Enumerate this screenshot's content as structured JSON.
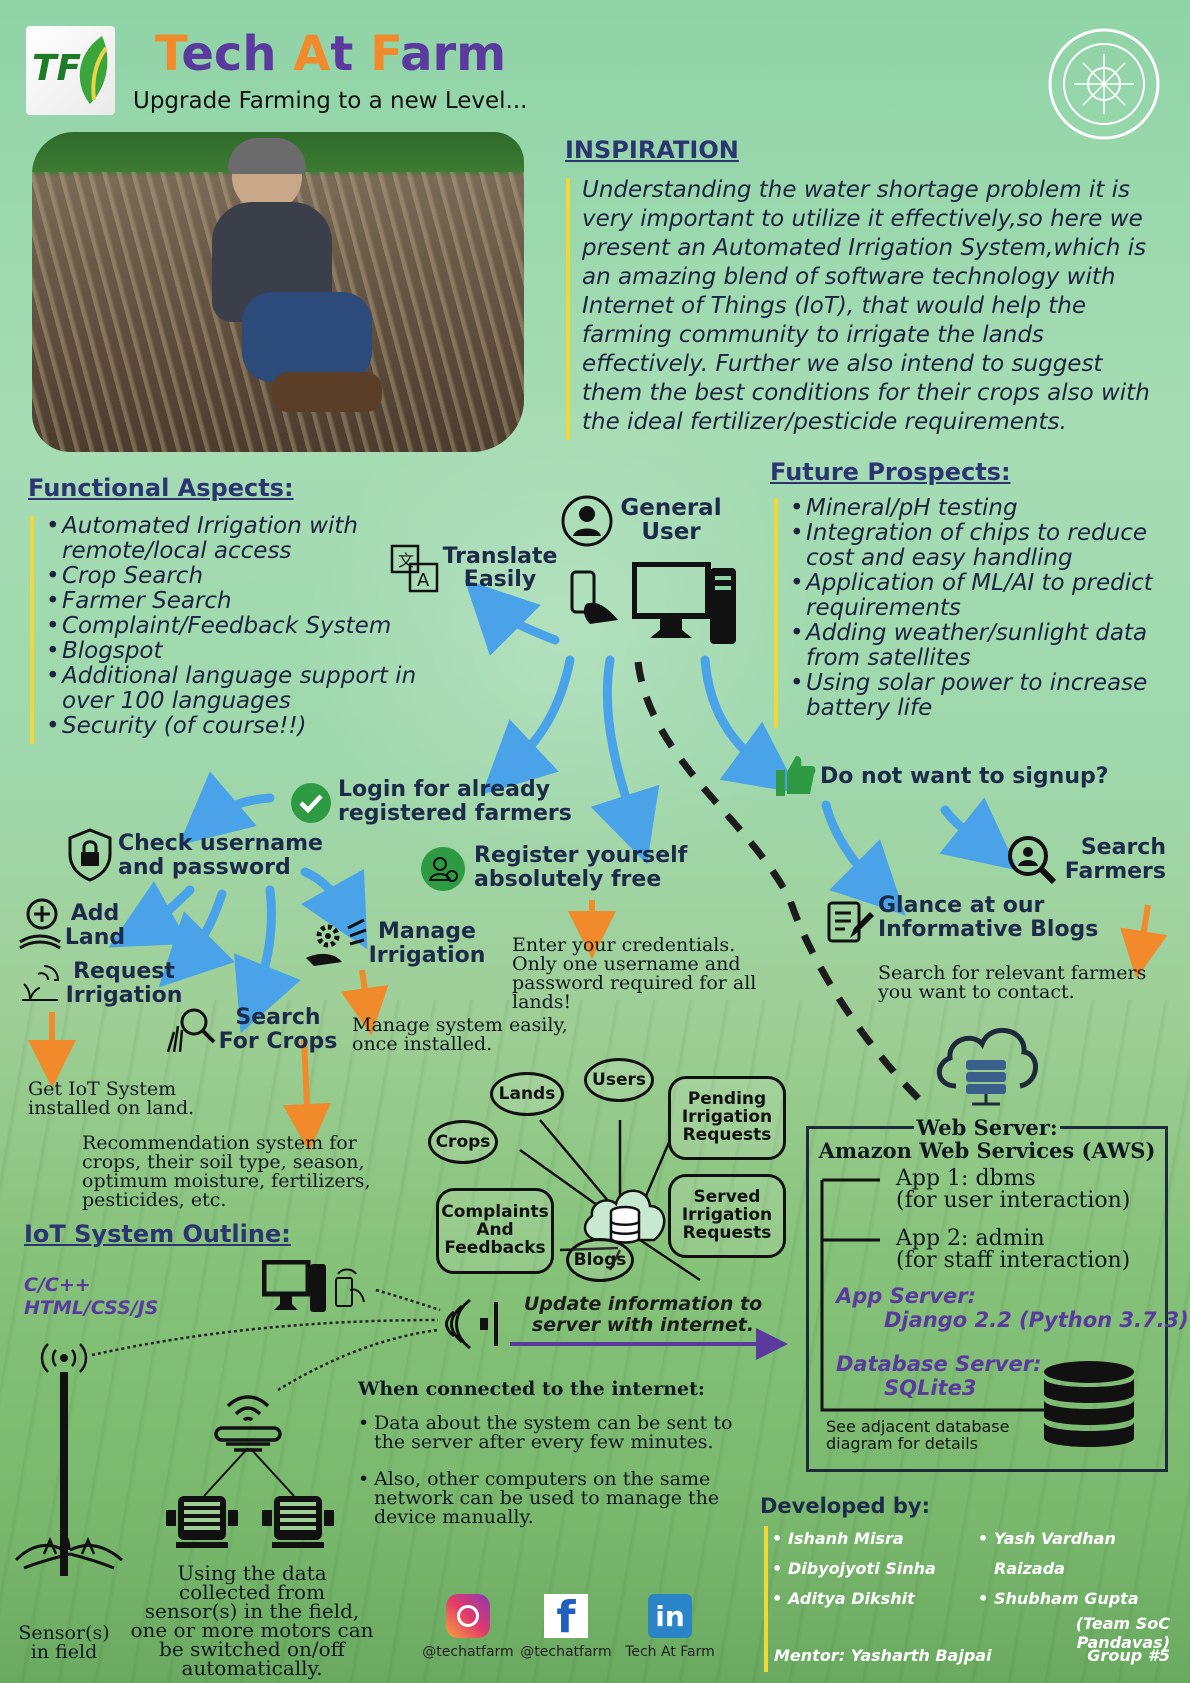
{
  "header": {
    "title_t1": "T",
    "title_p1": "ech ",
    "title_t2": "A",
    "title_p2": "t ",
    "title_t3": "F",
    "title_p3": "arm",
    "subtitle": "Upgrade Farming to a new Level...",
    "logo_letters": "TF"
  },
  "inspiration": {
    "heading": "INSPIRATION",
    "text": "Understanding the water shortage problem it is very important to utilize it effectively,so here we present an Automated Irrigation System,which is an amazing blend of software technology with Internet of Things (IoT), that would help the farming community to irrigate the lands effectively. Further we also intend to suggest them the best conditions for their crops also with the ideal fertilizer/pesticide requirements."
  },
  "functional": {
    "heading": "Functional Aspects:",
    "items": [
      "Automated Irrigation with remote/local access",
      "Crop Search",
      "Farmer Search",
      "Complaint/Feedback System",
      "Blogspot",
      "Additional language support in over 100 languages",
      "Security (of course!!)"
    ]
  },
  "future": {
    "heading": "Future Prospects:",
    "items": [
      "Mineral/pH testing",
      "Integration of chips to reduce cost and easy handling",
      "Application of ML/AI to predict requirements",
      "Adding weather/sunlight data from satellites",
      "Using solar power to increase battery life"
    ]
  },
  "flow": {
    "general_user": "General User",
    "translate": "Translate Easily",
    "login": "Login for already registered farmers",
    "no_signup": "Do not want to signup?",
    "check": "Check username and password",
    "register": "Register yourself absolutely free",
    "register_desc": "Enter your credentials. Only one username and password required for all lands!",
    "search_farmers": "Search Farmers",
    "blogs": "Glance at our Informative Blogs",
    "search_farmers_desc": "Search for relevant farmers you want to contact.",
    "add_land": "Add Land",
    "request_irrigation": "Request Irrigation",
    "manage_irrigation": "Manage Irrigation",
    "manage_desc": "Manage system easily, once installed.",
    "search_crops": "Search For Crops",
    "iot_installed": "Get IoT System installed on land.",
    "recommendation": "Recommendation system for crops, their soil type, season, optimum moisture, fertilizers, pesticides, etc."
  },
  "db_diagram": {
    "nodes": [
      "Lands",
      "Users",
      "Crops",
      "Pending Irrigation Requests",
      "Complaints And Feedbacks",
      "Blogs",
      "Served Irrigation Requests"
    ]
  },
  "server": {
    "title1": "Web Server:",
    "title2": "Amazon Web Services (AWS)",
    "app1": "App 1: dbms",
    "app1_sub": "(for user interaction)",
    "app2": "App 2: admin",
    "app2_sub": "(for staff interaction)",
    "app_server": "App Server:",
    "app_server_val": "Django 2.2 (Python 3.7.3)",
    "db_server": "Database Server:",
    "db_server_val": "SQLite3",
    "see_adjacent": "See adjacent database diagram for details"
  },
  "iot": {
    "heading": "IoT System Outline:",
    "langs1": "C/C++",
    "langs2": "HTML/CSS/JS",
    "update": "Update information to server with internet.",
    "connected": "When connected to the internet:",
    "points": [
      "Data about the system can be sent to the server after every few minutes.",
      "Also, other computers on the same network can be used to manage the device manually."
    ],
    "motors": "Using the data collected from sensor(s) in the field, one or more motors can be switched on/off automatically.",
    "sensor": "Sensor(s) in field"
  },
  "social": {
    "instagram": "@techatfarm",
    "facebook": "@techatfarm",
    "linkedin": "Tech At Farm"
  },
  "developers": {
    "heading": "Developed by:",
    "col1": [
      "Ishanh Misra",
      "Dibyojyoti Sinha",
      "Aditya Dikshit"
    ],
    "col2": [
      "Yash Vardhan Raizada",
      "Shubham Gupta"
    ],
    "team": "(Team SoC Pandavas)",
    "mentor": "Mentor: Yasharth Bajpai",
    "group": "Group #5"
  },
  "colors": {
    "title_orange": "#f08a2a",
    "title_purple": "#5b3aa0",
    "heading_navy": "#2b3572",
    "arrow_blue": "#4aa3e8",
    "accent_yellow": "#f1d83a"
  }
}
